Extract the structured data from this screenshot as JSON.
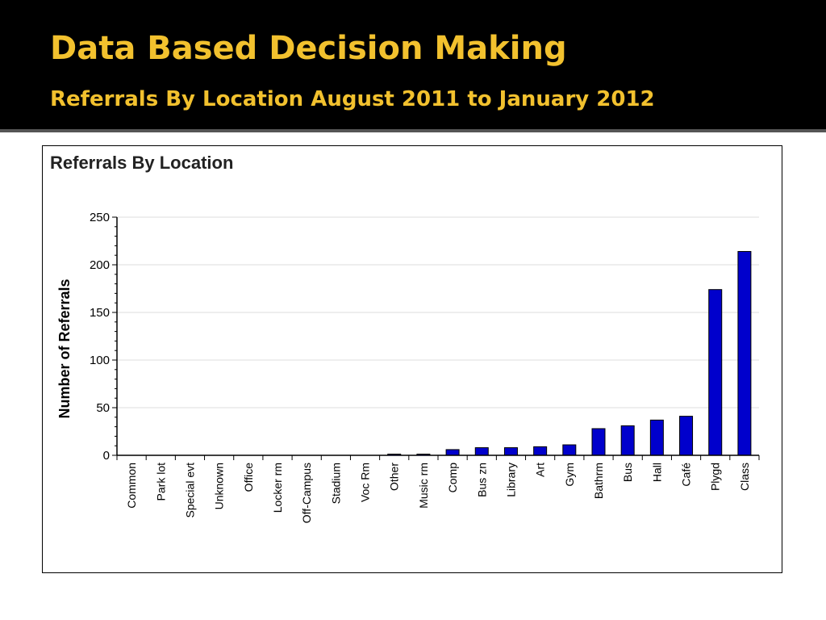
{
  "slide": {
    "title": "Data Based Decision Making",
    "subtitle": "Referrals By Location August 2011 to January 2012",
    "title_color": "#f2c12e",
    "background_color": "#000000"
  },
  "chart_data": {
    "type": "bar",
    "title": "Referrals By Location",
    "xlabel": "",
    "ylabel": "Number of Referrals",
    "ylim": [
      0,
      250
    ],
    "yticks": [
      0,
      50,
      100,
      150,
      200,
      250
    ],
    "grid": true,
    "bar_color": "#0000cc",
    "categories": [
      "Common",
      "Park lot",
      "Special evt",
      "Unknown",
      "Office",
      "Locker rm",
      "Off-Campus",
      "Stadium",
      "Voc Rm",
      "Other",
      "Music rm",
      "Comp",
      "Bus zn",
      "Library",
      "Art",
      "Gym",
      "Bathrm",
      "Bus",
      "Hall",
      "Café",
      "Plygd",
      "Class"
    ],
    "values": [
      0,
      0,
      0,
      0,
      0,
      0,
      0,
      0,
      0,
      1,
      1,
      6,
      8,
      8,
      9,
      11,
      28,
      31,
      37,
      41,
      174,
      214
    ]
  }
}
